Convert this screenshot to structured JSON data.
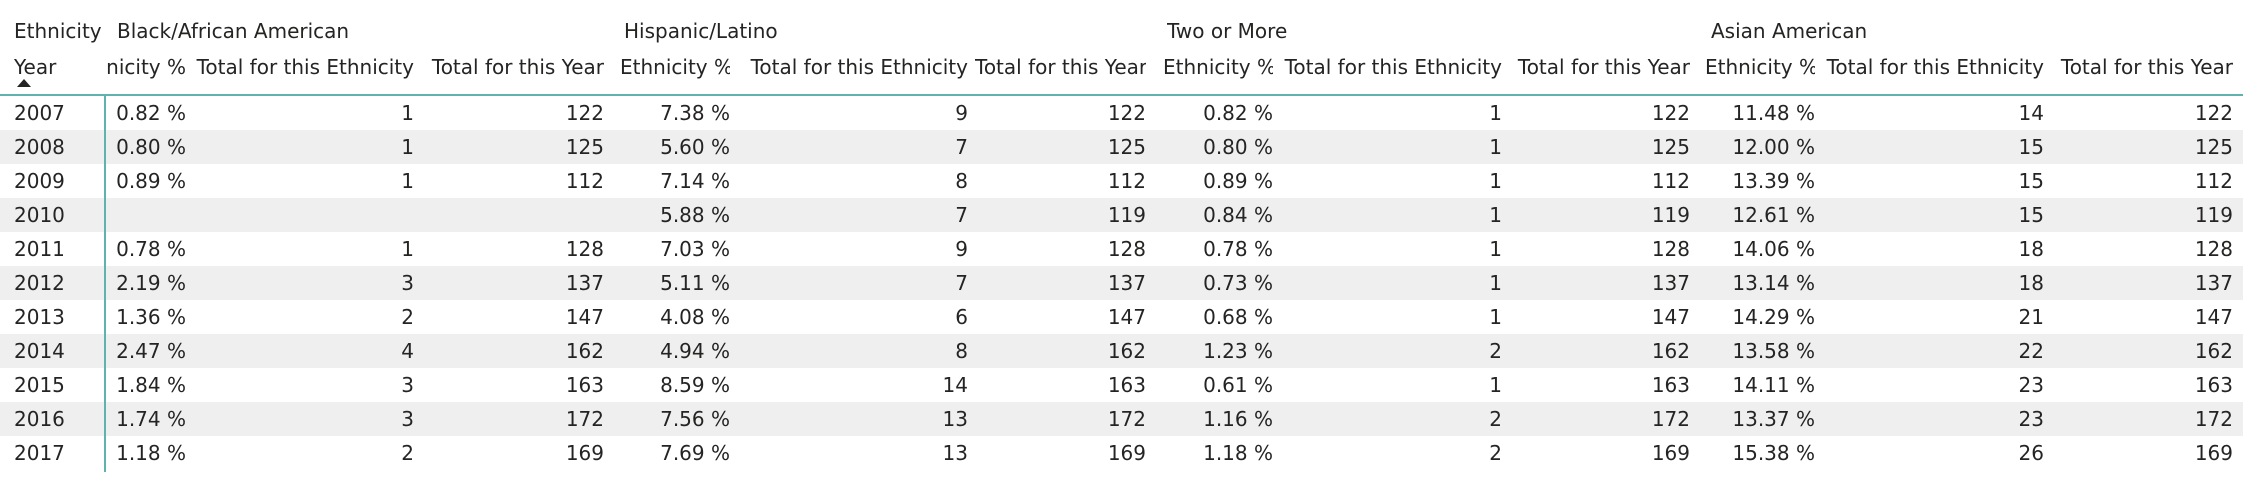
{
  "matrix": {
    "corner_row_label": "Ethnicity",
    "corner_col_label": "Year",
    "sort_icon": "sort-ascending-icon",
    "accent_color": "#5fb3ac",
    "band_color": "#efefef",
    "groups": [
      {
        "name": "Black/African American"
      },
      {
        "name": "Hispanic/Latino"
      },
      {
        "name": "Two or More"
      },
      {
        "name": "Asian American"
      }
    ],
    "subheaders": [
      [
        "nicity %",
        "Total for this Ethnicity",
        "Total for this Year"
      ],
      [
        "Ethnicity %",
        "Total for this Ethnicity",
        "Total for this Year"
      ],
      [
        "Ethnicity %",
        "Total for this Ethnicity",
        "Total for this Year"
      ],
      [
        "Ethnicity %",
        "Total for this Ethnicity",
        "Total for this Year"
      ]
    ],
    "rows": [
      {
        "year": "2007",
        "values": [
          "0.82 %",
          "1",
          "122",
          "7.38 %",
          "9",
          "122",
          "0.82 %",
          "1",
          "122",
          "11.48 %",
          "14",
          "122"
        ]
      },
      {
        "year": "2008",
        "values": [
          "0.80 %",
          "1",
          "125",
          "5.60 %",
          "7",
          "125",
          "0.80 %",
          "1",
          "125",
          "12.00 %",
          "15",
          "125"
        ]
      },
      {
        "year": "2009",
        "values": [
          "0.89 %",
          "1",
          "112",
          "7.14 %",
          "8",
          "112",
          "0.89 %",
          "1",
          "112",
          "13.39 %",
          "15",
          "112"
        ]
      },
      {
        "year": "2010",
        "values": [
          "",
          "",
          "",
          "5.88 %",
          "7",
          "119",
          "0.84 %",
          "1",
          "119",
          "12.61 %",
          "15",
          "119"
        ]
      },
      {
        "year": "2011",
        "values": [
          "0.78 %",
          "1",
          "128",
          "7.03 %",
          "9",
          "128",
          "0.78 %",
          "1",
          "128",
          "14.06 %",
          "18",
          "128"
        ]
      },
      {
        "year": "2012",
        "values": [
          "2.19 %",
          "3",
          "137",
          "5.11 %",
          "7",
          "137",
          "0.73 %",
          "1",
          "137",
          "13.14 %",
          "18",
          "137"
        ]
      },
      {
        "year": "2013",
        "values": [
          "1.36 %",
          "2",
          "147",
          "4.08 %",
          "6",
          "147",
          "0.68 %",
          "1",
          "147",
          "14.29 %",
          "21",
          "147"
        ]
      },
      {
        "year": "2014",
        "values": [
          "2.47 %",
          "4",
          "162",
          "4.94 %",
          "8",
          "162",
          "1.23 %",
          "2",
          "162",
          "13.58 %",
          "22",
          "162"
        ]
      },
      {
        "year": "2015",
        "values": [
          "1.84 %",
          "3",
          "163",
          "8.59 %",
          "14",
          "163",
          "0.61 %",
          "1",
          "163",
          "14.11 %",
          "23",
          "163"
        ]
      },
      {
        "year": "2016",
        "values": [
          "1.74 %",
          "3",
          "172",
          "7.56 %",
          "13",
          "172",
          "1.16 %",
          "2",
          "172",
          "13.37 %",
          "23",
          "172"
        ]
      },
      {
        "year": "2017",
        "values": [
          "1.18 %",
          "2",
          "169",
          "7.69 %",
          "13",
          "169",
          "1.18 %",
          "2",
          "169",
          "15.38 %",
          "26",
          "169"
        ]
      }
    ]
  }
}
